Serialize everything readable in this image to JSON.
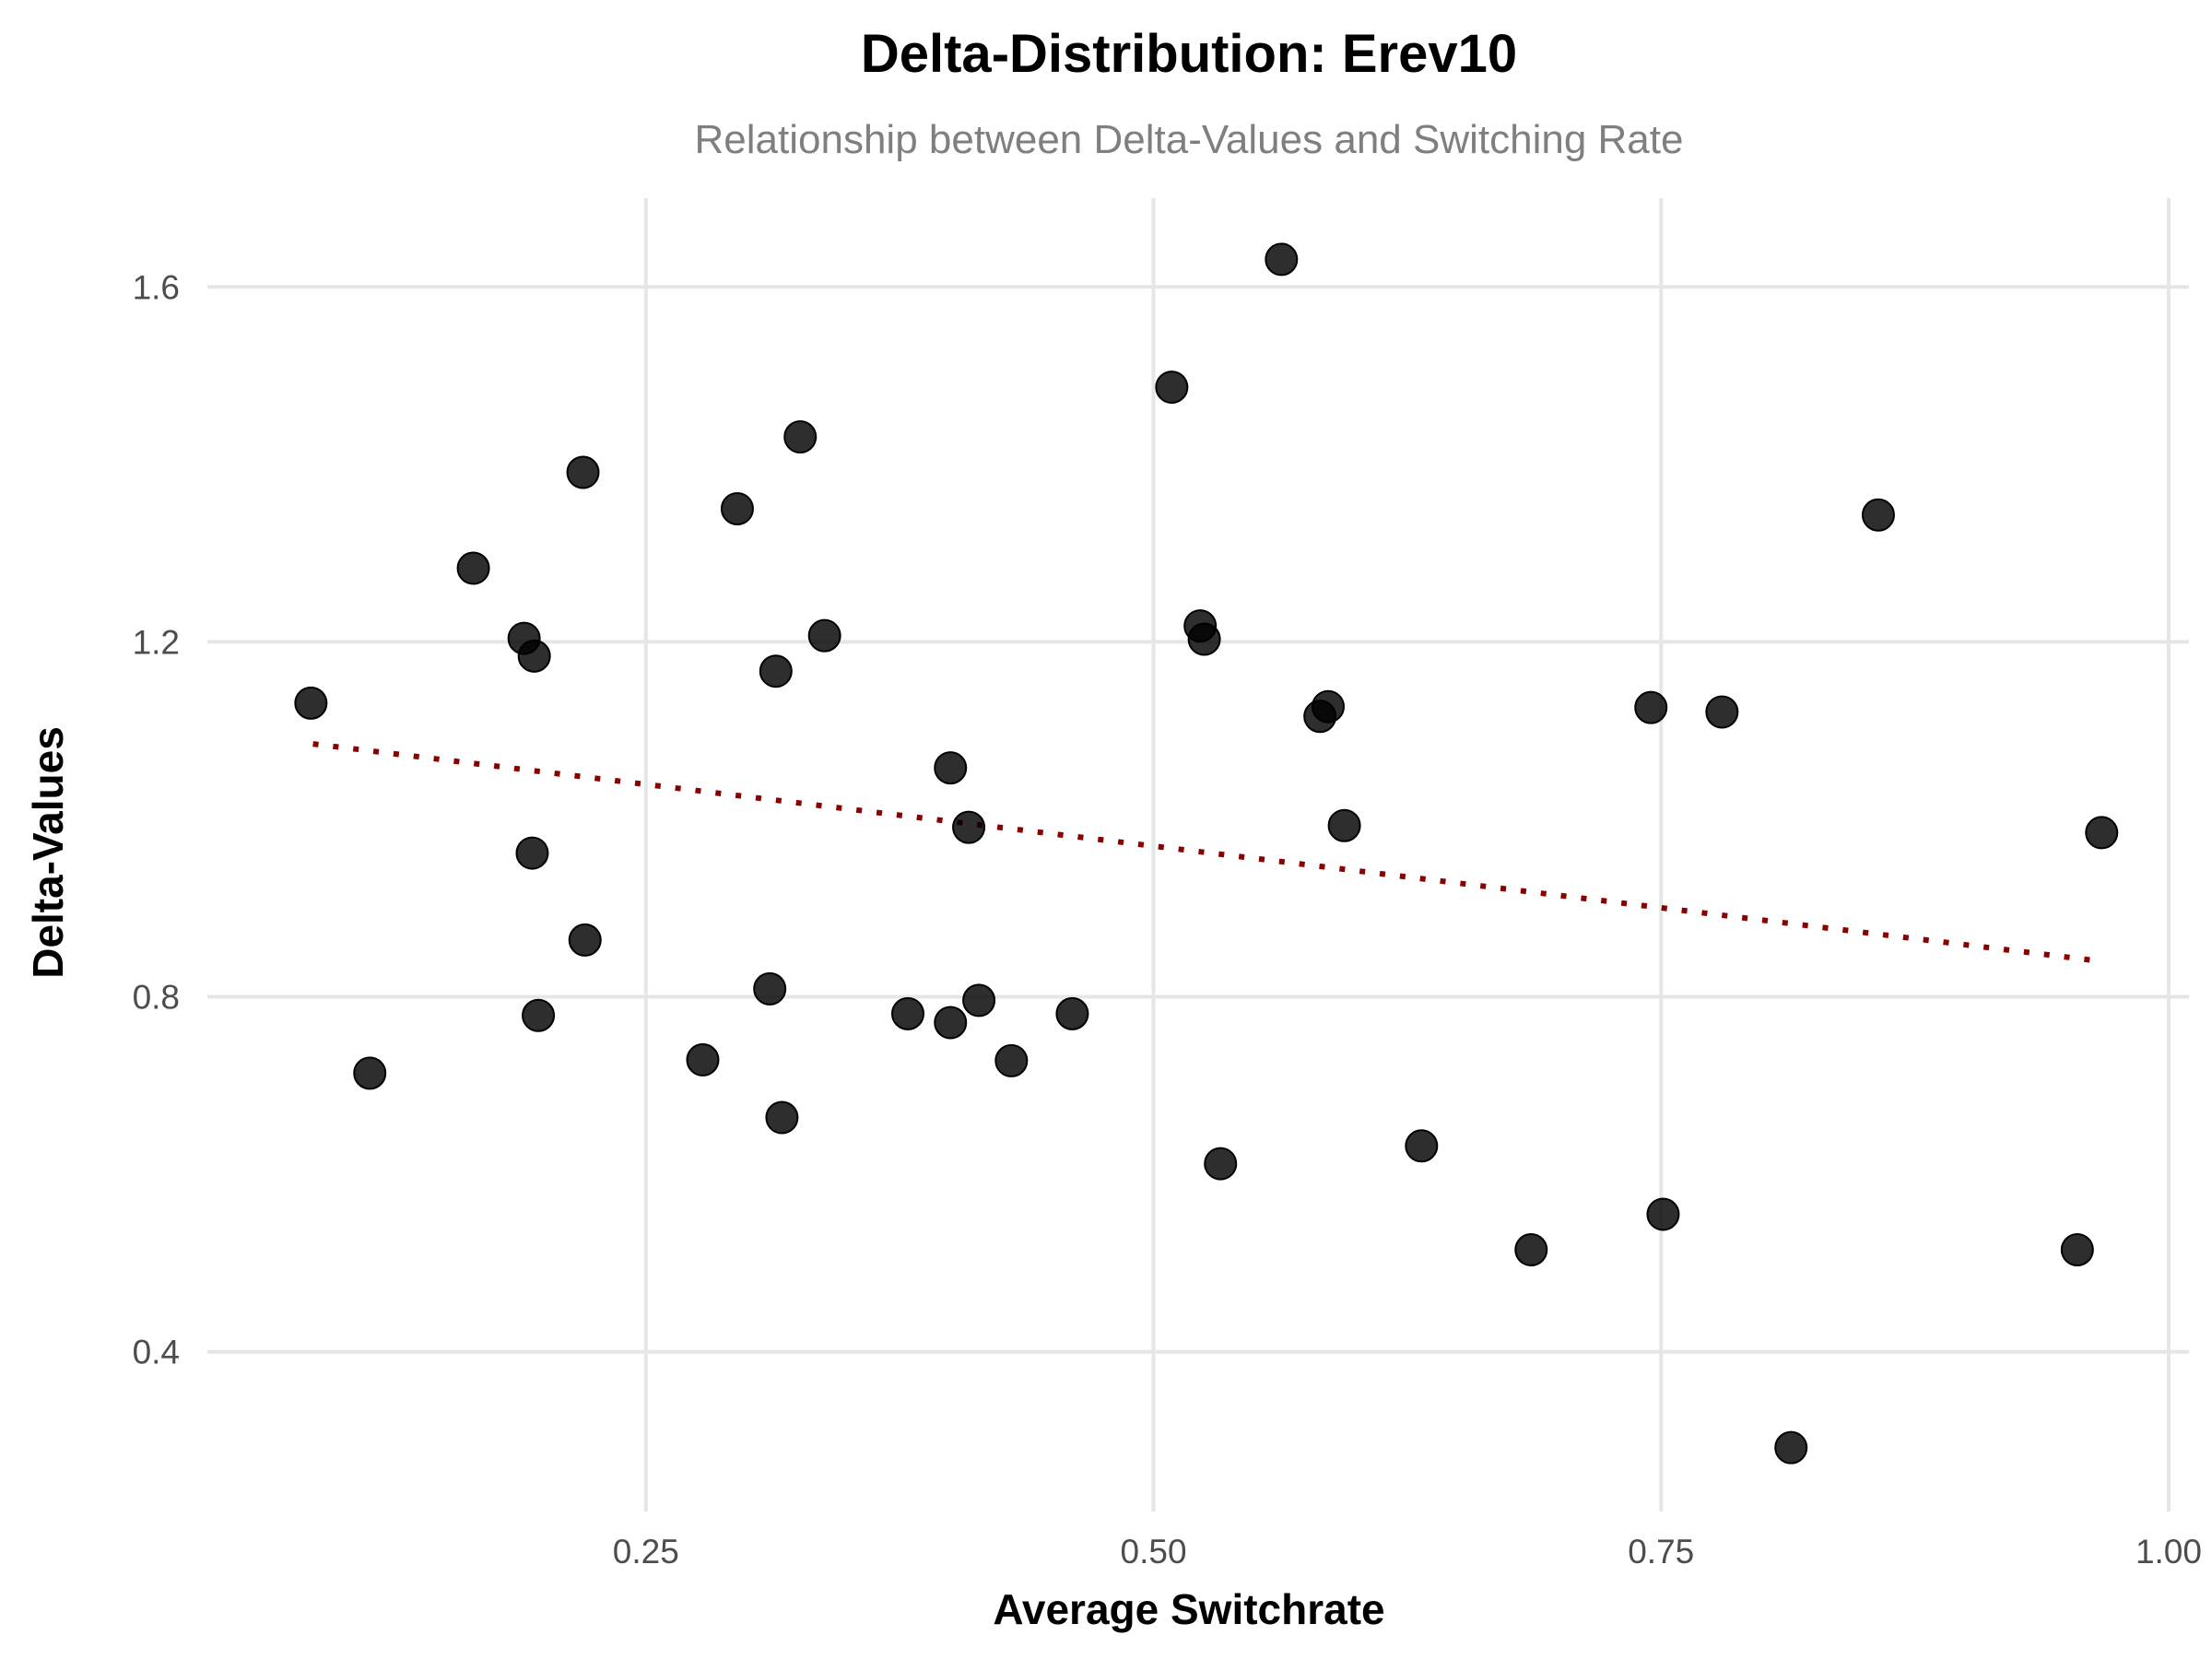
{
  "chart_data": {
    "type": "scatter",
    "title": "Delta-Distribution: Erev10",
    "subtitle": "Relationship between Delta-Values and Switching Rate",
    "xlabel": "Average Switchrate",
    "ylabel": "Delta-Values",
    "xlim": [
      0.034,
      1.01
    ],
    "ylim": [
      0.22,
      1.7
    ],
    "x_ticks": [
      0.25,
      0.5,
      0.75,
      1.0
    ],
    "x_tick_labels": [
      "0.25",
      "0.50",
      "0.75",
      "1.00"
    ],
    "y_ticks": [
      0.4,
      0.8,
      1.2,
      1.6
    ],
    "y_tick_labels": [
      "0.4",
      "0.8",
      "1.2",
      "1.6"
    ],
    "grid": true,
    "legend": "none",
    "colors": {
      "points": "#000000",
      "trend_line": "#8b0000",
      "grid": "#e6e6e6"
    },
    "trend_line": {
      "style": "dotted",
      "x": [
        0.086,
        0.967
      ],
      "y": [
        1.085,
        0.84
      ]
    },
    "points": [
      {
        "x": 0.085,
        "y": 1.131
      },
      {
        "x": 0.114,
        "y": 0.714
      },
      {
        "x": 0.165,
        "y": 1.283
      },
      {
        "x": 0.19,
        "y": 1.204
      },
      {
        "x": 0.195,
        "y": 1.184
      },
      {
        "x": 0.194,
        "y": 0.962
      },
      {
        "x": 0.197,
        "y": 0.779
      },
      {
        "x": 0.219,
        "y": 1.391
      },
      {
        "x": 0.22,
        "y": 0.864
      },
      {
        "x": 0.278,
        "y": 0.729
      },
      {
        "x": 0.295,
        "y": 1.35
      },
      {
        "x": 0.311,
        "y": 0.809
      },
      {
        "x": 0.314,
        "y": 1.167
      },
      {
        "x": 0.317,
        "y": 0.664
      },
      {
        "x": 0.326,
        "y": 1.431
      },
      {
        "x": 0.338,
        "y": 1.207
      },
      {
        "x": 0.379,
        "y": 0.781
      },
      {
        "x": 0.4,
        "y": 1.058
      },
      {
        "x": 0.4,
        "y": 0.771
      },
      {
        "x": 0.409,
        "y": 0.991
      },
      {
        "x": 0.414,
        "y": 0.796
      },
      {
        "x": 0.43,
        "y": 0.728
      },
      {
        "x": 0.46,
        "y": 0.781
      },
      {
        "x": 0.509,
        "y": 1.487
      },
      {
        "x": 0.523,
        "y": 1.218
      },
      {
        "x": 0.525,
        "y": 1.203
      },
      {
        "x": 0.533,
        "y": 0.612
      },
      {
        "x": 0.563,
        "y": 1.631
      },
      {
        "x": 0.582,
        "y": 1.116
      },
      {
        "x": 0.586,
        "y": 1.127
      },
      {
        "x": 0.594,
        "y": 0.993
      },
      {
        "x": 0.632,
        "y": 0.632
      },
      {
        "x": 0.686,
        "y": 0.515
      },
      {
        "x": 0.745,
        "y": 1.126
      },
      {
        "x": 0.751,
        "y": 0.555
      },
      {
        "x": 0.78,
        "y": 1.121
      },
      {
        "x": 0.814,
        "y": 0.292
      },
      {
        "x": 0.857,
        "y": 1.343
      },
      {
        "x": 0.955,
        "y": 0.515
      },
      {
        "x": 0.967,
        "y": 0.985
      }
    ]
  }
}
